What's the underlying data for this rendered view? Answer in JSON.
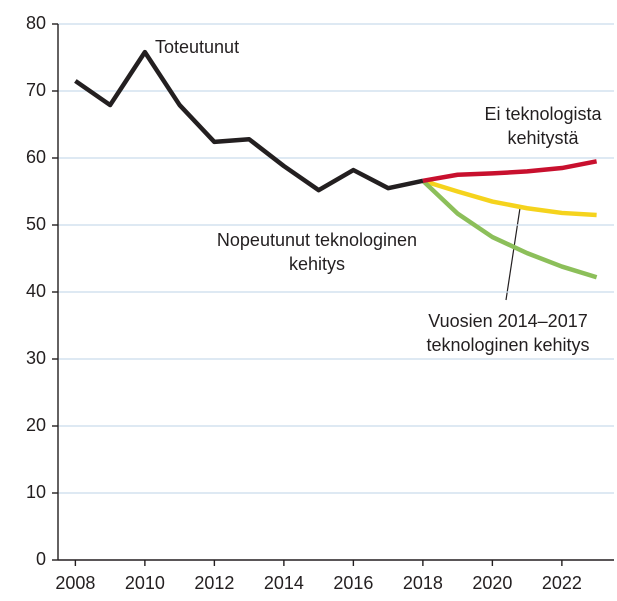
{
  "chart_data": {
    "type": "line",
    "x": [
      2008,
      2009,
      2010,
      2011,
      2012,
      2013,
      2014,
      2015,
      2016,
      2017,
      2018,
      2019,
      2020,
      2021,
      2022,
      2023
    ],
    "series": [
      {
        "name_lines": [
          "Toteutunut"
        ],
        "color": "#231f20",
        "values": [
          71.5,
          67.9,
          75.8,
          67.9,
          62.4,
          62.8,
          58.8,
          55.2,
          58.2,
          55.5,
          56.6,
          null,
          null,
          null,
          null,
          null
        ]
      },
      {
        "name_lines": [
          "Ei teknologista",
          "kehitystä"
        ],
        "color": "#c8102e",
        "values": [
          null,
          null,
          null,
          null,
          null,
          null,
          null,
          null,
          null,
          null,
          56.6,
          57.5,
          57.7,
          58.0,
          58.5,
          59.5
        ]
      },
      {
        "name_lines": [
          "Vuosien 2014–2017",
          "teknologinen kehitys"
        ],
        "color": "#f5d31d",
        "values": [
          null,
          null,
          null,
          null,
          null,
          null,
          null,
          null,
          null,
          null,
          56.6,
          55.0,
          53.5,
          52.5,
          51.8,
          51.5
        ]
      },
      {
        "name_lines": [
          "Nopeutunut teknologinen",
          "kehitys"
        ],
        "color": "#8cbf5a",
        "values": [
          null,
          null,
          null,
          null,
          null,
          null,
          null,
          null,
          null,
          null,
          56.6,
          51.7,
          48.2,
          45.8,
          43.8,
          42.2
        ]
      }
    ],
    "xlim": [
      2007.5,
      2023.5
    ],
    "xticks": [
      2008,
      2010,
      2012,
      2014,
      2016,
      2018,
      2020,
      2022
    ],
    "ylim": [
      0,
      80
    ],
    "yticks": [
      0,
      10,
      20,
      30,
      40,
      50,
      60,
      70,
      80
    ],
    "grid": true
  }
}
